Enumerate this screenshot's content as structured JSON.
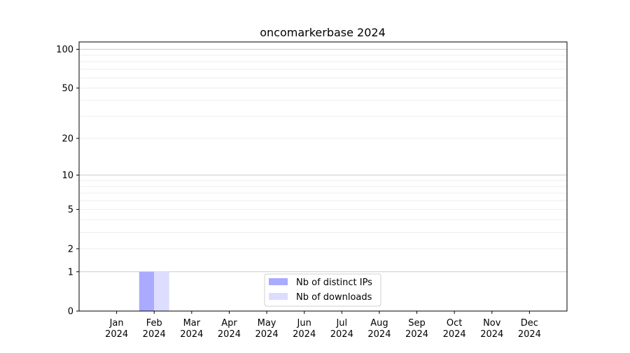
{
  "chart_data": {
    "type": "bar",
    "title": "oncomarkerbase 2024",
    "xlabel": "",
    "ylabel": "",
    "y_scale": "log(1+y)",
    "ylim": [
      0,
      114
    ],
    "y_ticks": [
      0,
      1,
      2,
      5,
      10,
      20,
      50,
      100
    ],
    "grid": true,
    "legend_position": "bottom-center",
    "categories": [
      "Jan\n2024",
      "Feb\n2024",
      "Mar\n2024",
      "Apr\n2024",
      "May\n2024",
      "Jun\n2024",
      "Jul\n2024",
      "Aug\n2024",
      "Sep\n2024",
      "Oct\n2024",
      "Nov\n2024",
      "Dec\n2024"
    ],
    "series": [
      {
        "name": "Nb of distinct IPs",
        "color": "#aaaaff",
        "values": [
          0,
          1,
          0,
          0,
          0,
          0,
          0,
          0,
          0,
          0,
          0,
          0
        ]
      },
      {
        "name": "Nb of downloads",
        "color": "#ddddff",
        "values": [
          0,
          1,
          0,
          0,
          0,
          0,
          0,
          0,
          0,
          0,
          0,
          0
        ]
      }
    ]
  }
}
